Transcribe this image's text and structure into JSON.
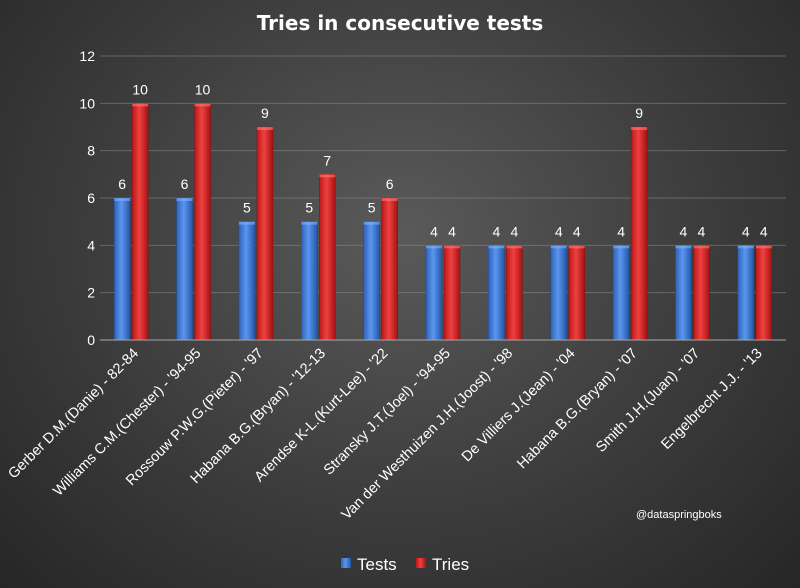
{
  "chart_data": {
    "type": "bar",
    "title": "Tries in consecutive tests",
    "categories": [
      "Gerber D.M.(Danie) - 82-84",
      "Williams C.M.(Chester) - '94-95",
      "Rossouw P.W.G.(Pieter) - '97",
      "Habana B.G.(Bryan) - '12-13",
      "Arendse K-L.(Kurt-Lee) - '22",
      "Stransky J.T.(Joel) - '94-95",
      "Van der Westhuizen J.H.(Joost) - '98",
      "De Villiers J.(Jean) - '04",
      "Habana B.G.(Bryan) - '07",
      "Smith J.H.(Juan) - '07",
      "Engelbrecht J.J. - '13"
    ],
    "series": [
      {
        "name": "Tests",
        "values": [
          6,
          6,
          5,
          5,
          5,
          4,
          4,
          4,
          4,
          4,
          4
        ],
        "color": "#3a78d6"
      },
      {
        "name": "Tries",
        "values": [
          10,
          10,
          9,
          7,
          6,
          4,
          4,
          4,
          9,
          4,
          4
        ],
        "color": "#e02424"
      }
    ],
    "ylim": [
      0,
      12
    ],
    "yticks": [
      0,
      2,
      4,
      6,
      8,
      10,
      12
    ],
    "grid": true,
    "legend": "bottom",
    "data_labels": true
  },
  "credit": "@dataspringboks"
}
